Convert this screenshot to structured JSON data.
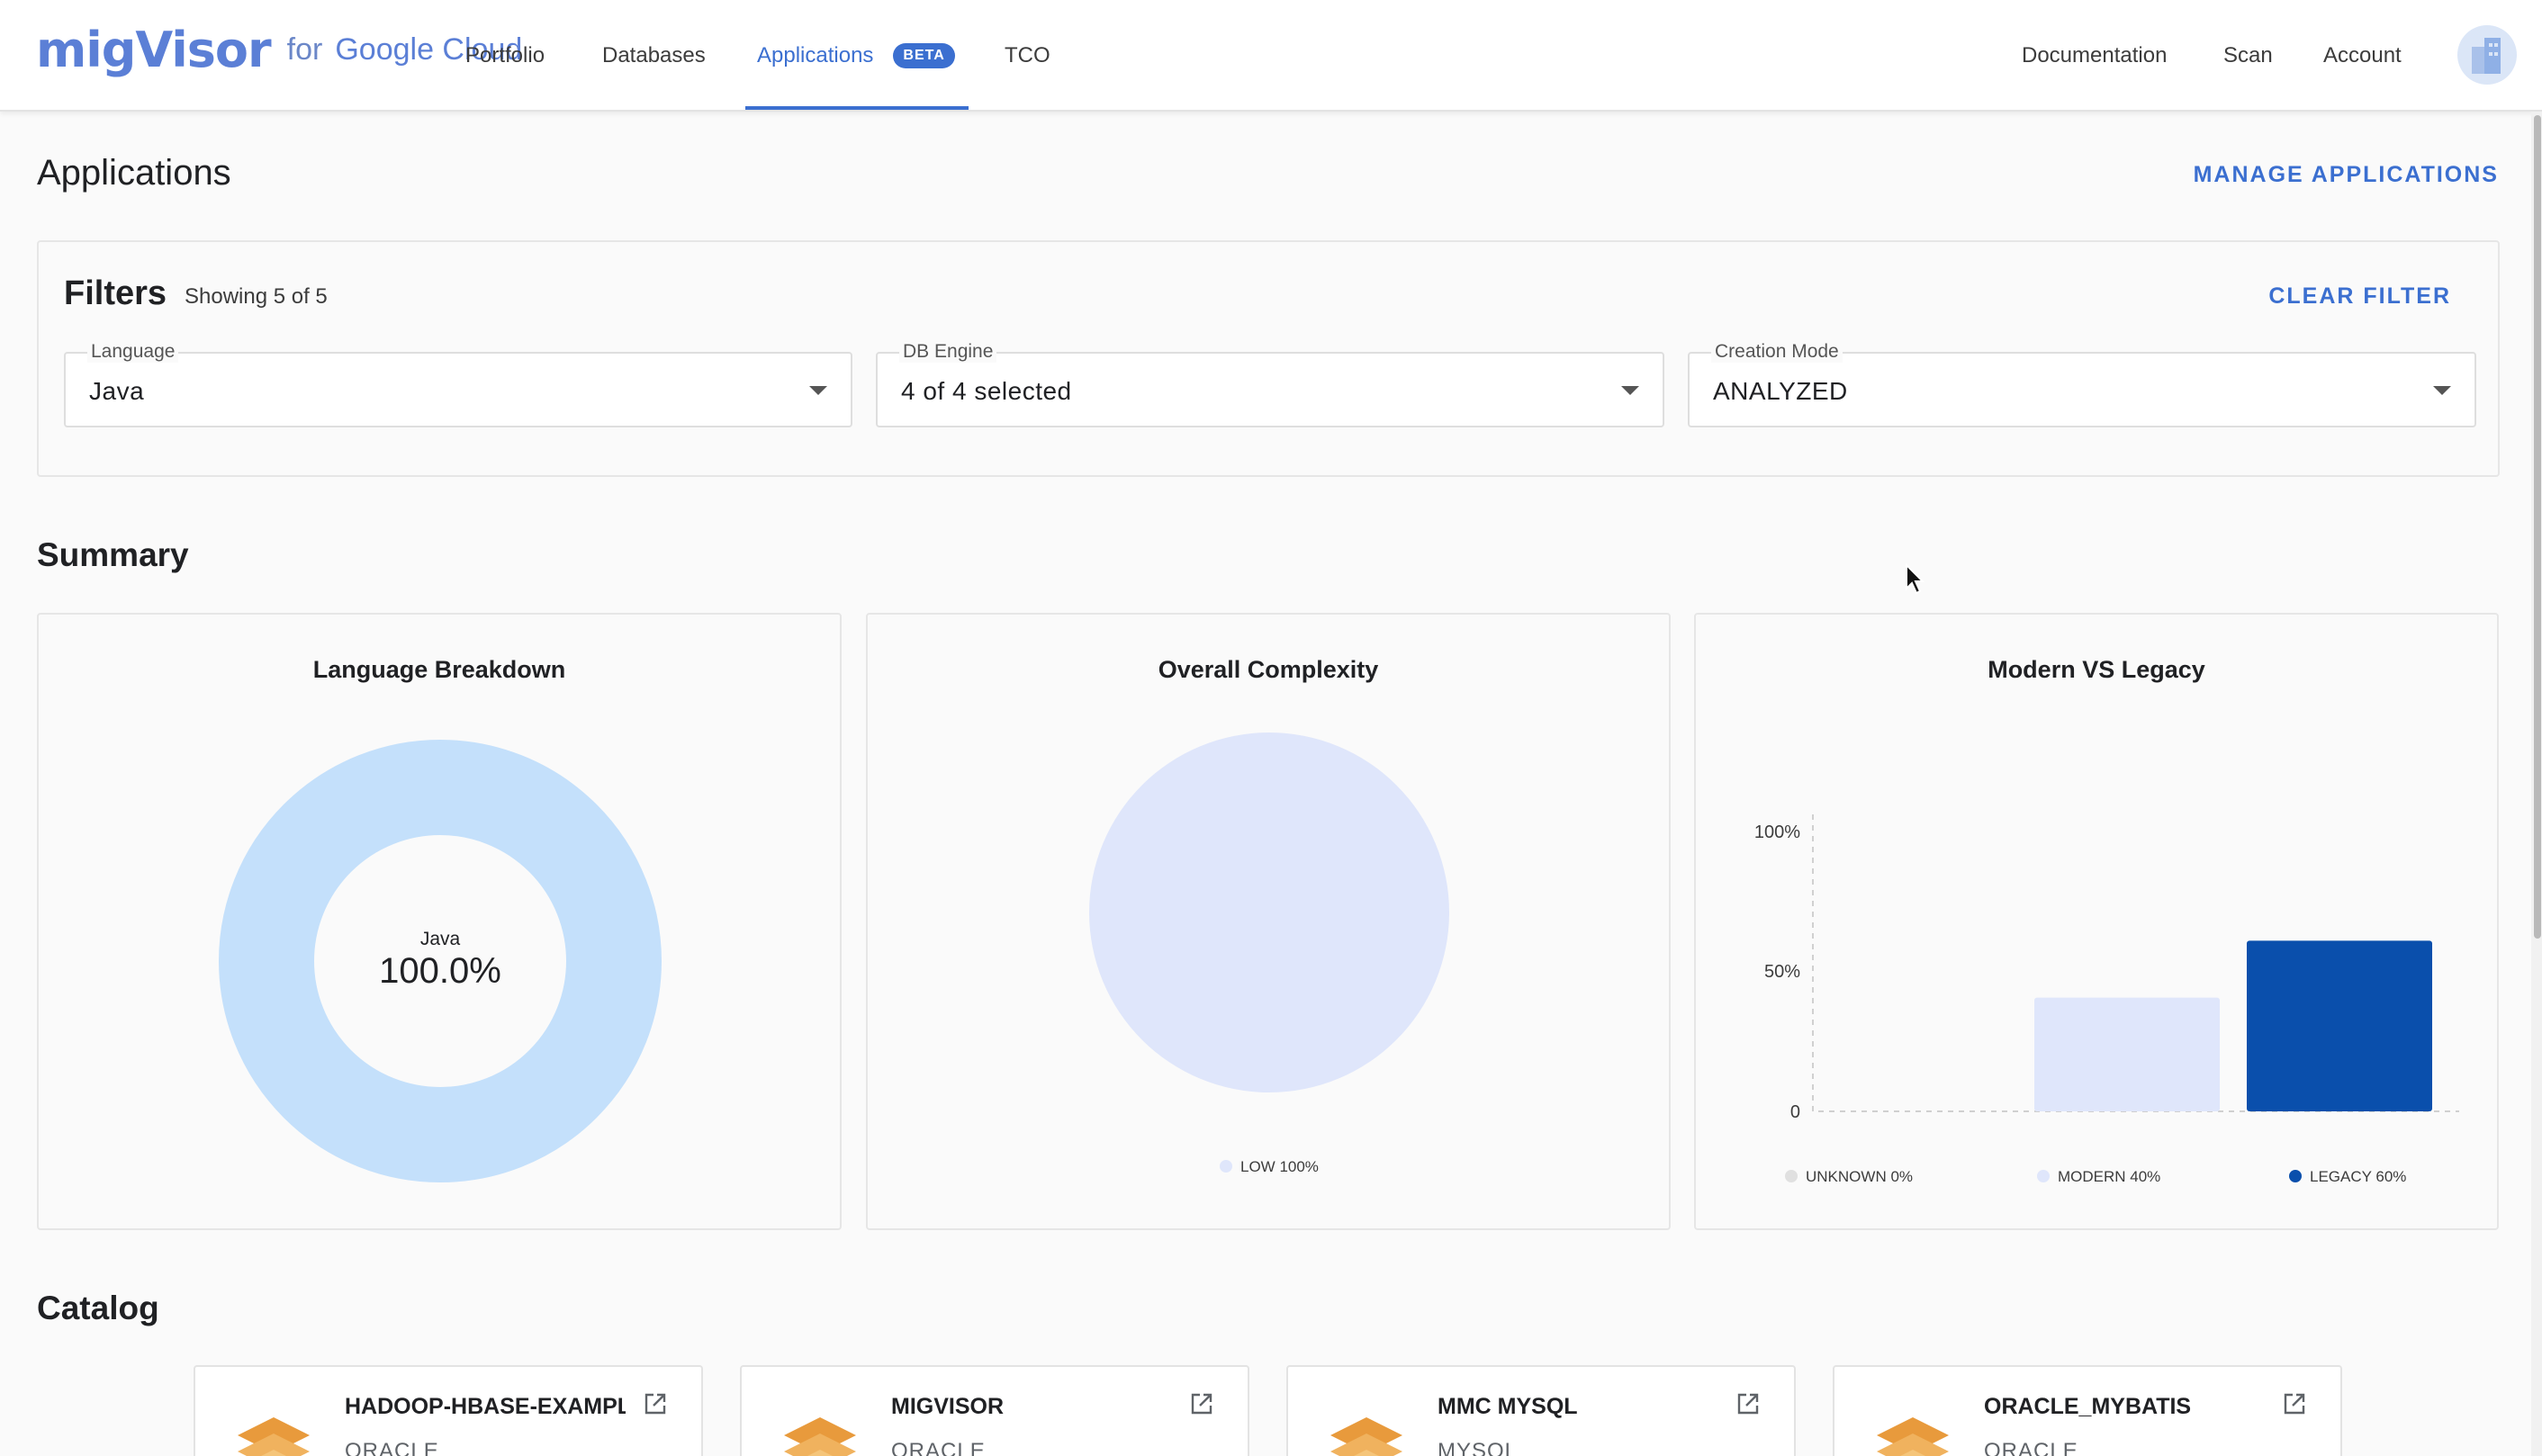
{
  "header": {
    "brand": "migVisor",
    "brand_suffix_for": "for",
    "brand_suffix_cloud": "Google Cloud",
    "nav": [
      {
        "label": "Portfolio"
      },
      {
        "label": "Databases"
      },
      {
        "label": "Applications",
        "badge": "BETA",
        "active": true
      },
      {
        "label": "TCO"
      }
    ],
    "right_nav": [
      {
        "label": "Documentation"
      },
      {
        "label": "Scan"
      },
      {
        "label": "Account"
      }
    ]
  },
  "page": {
    "title": "Applications",
    "manage_link": "MANAGE APPLICATIONS"
  },
  "filters": {
    "title": "Filters",
    "count": "Showing 5 of 5",
    "clear_link": "CLEAR FILTER",
    "fields": [
      {
        "label": "Language",
        "value": "Java"
      },
      {
        "label": "DB Engine",
        "value": "4 of 4 selected"
      },
      {
        "label": "Creation Mode",
        "value": "ANALYZED"
      }
    ]
  },
  "summary": {
    "title": "Summary",
    "language_breakdown": {
      "title": "Language Breakdown",
      "center_label": "Java",
      "center_value": "100.0%",
      "slices": [
        {
          "name": "Java",
          "value": 100,
          "color": "#c4e0fb"
        }
      ]
    },
    "overall_complexity": {
      "title": "Overall Complexity",
      "slices": [
        {
          "name": "LOW",
          "value": 100,
          "color": "#dfe6fb"
        }
      ],
      "legend": [
        "LOW 100%"
      ]
    },
    "modern_vs_legacy": {
      "title": "Modern VS Legacy",
      "y_ticks": [
        "100%",
        "50%",
        "0"
      ],
      "legend": [
        "UNKNOWN 0%",
        "MODERN 40%",
        "LEGACY 60%"
      ]
    }
  },
  "chart_data": [
    {
      "type": "pie",
      "title": "Language Breakdown",
      "categories": [
        "Java"
      ],
      "values": [
        100
      ]
    },
    {
      "type": "pie",
      "title": "Overall Complexity",
      "categories": [
        "LOW"
      ],
      "values": [
        100
      ]
    },
    {
      "type": "bar",
      "title": "Modern VS Legacy",
      "categories": [
        "UNKNOWN",
        "MODERN",
        "LEGACY"
      ],
      "values": [
        0,
        40,
        60
      ],
      "colors": [
        "#e0e0e0",
        "#dfe6fb",
        "#0a4fac"
      ],
      "ylim": [
        0,
        100
      ],
      "y_ticks": [
        "100%",
        "50%",
        "0"
      ],
      "legend_position": "bottom"
    }
  ],
  "catalog": {
    "title": "Catalog",
    "items": [
      {
        "name": "HADOOP-HBASE-EXAMPLES",
        "engine": "ORACLE"
      },
      {
        "name": "MIGVISOR",
        "engine": "ORACLE"
      },
      {
        "name": "MMC MYSQL",
        "engine": "MYSQL"
      },
      {
        "name": "ORACLE_MYBATIS",
        "engine": "ORACLE"
      }
    ]
  }
}
